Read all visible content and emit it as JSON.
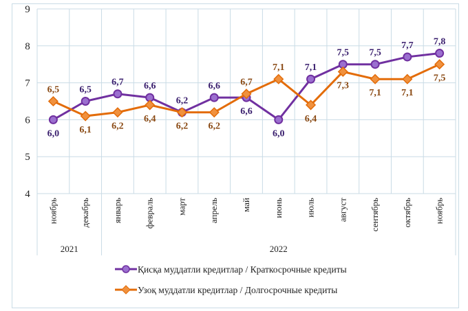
{
  "chart_data": {
    "type": "line",
    "categories": [
      "ноябрь",
      "декабрь",
      "январь",
      "февраль",
      "март",
      "апрель",
      "май",
      "июнь",
      "июль",
      "август",
      "сентябрь",
      "октябрь",
      "ноябрь"
    ],
    "year_groups": [
      {
        "label": "2021",
        "span": 2
      },
      {
        "label": "2022",
        "span": 11
      }
    ],
    "ylim": [
      4,
      9
    ],
    "yticks": [
      4,
      5,
      6,
      7,
      8,
      9
    ],
    "grid": true,
    "legend_position": "bottom",
    "series": [
      {
        "name": "Қисқа муддатли кредитлар  / Краткосрочные кредиты",
        "color": "#7030A0",
        "label_color": "#3a1f6e",
        "marker": "circle",
        "values": [
          6.0,
          6.5,
          6.7,
          6.6,
          6.2,
          6.6,
          6.6,
          6.0,
          7.1,
          7.5,
          7.5,
          7.7,
          7.8
        ],
        "labels": [
          "6,0",
          "6,5",
          "6,7",
          "6,6",
          "6,2",
          "6,6",
          "6,6",
          "6,0",
          "7,1",
          "7,5",
          "7,5",
          "7,7",
          "7,8"
        ]
      },
      {
        "name": "Узоқ муддатли  кредитлар  / Долгосрочные кредиты",
        "color": "#E36C09",
        "label_color": "#8a4a14",
        "marker": "diamond",
        "values": [
          6.5,
          6.1,
          6.2,
          6.4,
          6.2,
          6.2,
          6.7,
          7.1,
          6.4,
          7.3,
          7.1,
          7.1,
          7.5
        ],
        "labels": [
          "6,5",
          "6,1",
          "6,2",
          "6,4",
          "6,2",
          "6,2",
          "6,7",
          "7,1",
          "6,4",
          "7,3",
          "7,1",
          "7,1",
          "7,5"
        ]
      }
    ]
  }
}
